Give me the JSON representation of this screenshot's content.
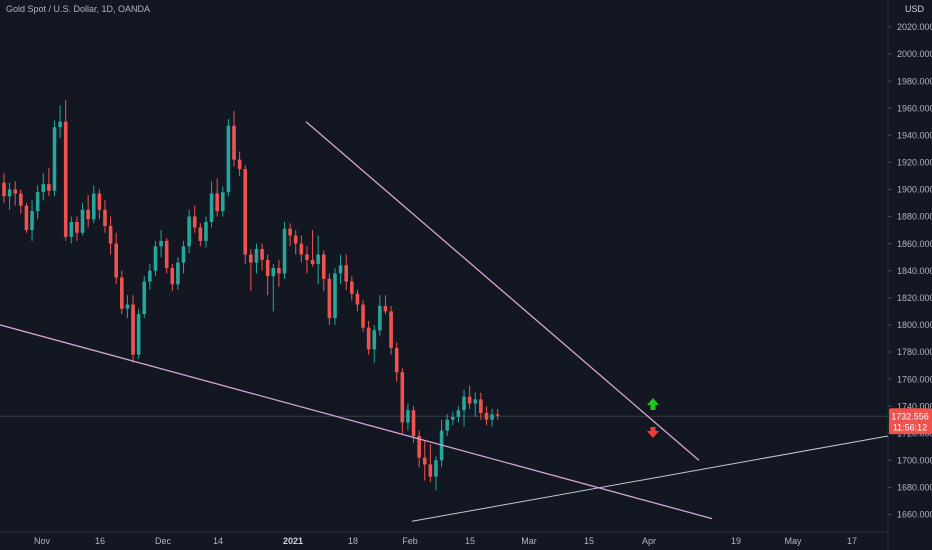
{
  "header": {
    "title": "Gold Spot / U.S. Dollar, 1D, OANDA",
    "currency": "USD"
  },
  "colors": {
    "background": "#131722",
    "up": "#26a69a",
    "down": "#ef5350",
    "trendline": "#d6a3d6",
    "support": "#c8c8c8",
    "arrow_up": "#22c322",
    "arrow_down": "#ef3e36"
  },
  "badge": {
    "price": "1732.556",
    "countdown": "11:56:12"
  },
  "markers": {
    "up_icon": "arrow-up-icon",
    "down_icon": "arrow-down-icon"
  },
  "chart_data": {
    "type": "candlestick",
    "y_ticks": [
      "2020.000",
      "2000.000",
      "1980.000",
      "1960.000",
      "1940.000",
      "1920.000",
      "1900.000",
      "1880.000",
      "1860.000",
      "1840.000",
      "1820.000",
      "1800.000",
      "1780.000",
      "1760.000",
      "1740.000",
      "1720.000",
      "1700.000",
      "1680.000",
      "1660.000"
    ],
    "x_ticks": [
      {
        "label": "Nov",
        "bold": false
      },
      {
        "label": "16",
        "bold": false
      },
      {
        "label": "Dec",
        "bold": false
      },
      {
        "label": "14",
        "bold": false
      },
      {
        "label": "2021",
        "bold": true
      },
      {
        "label": "18",
        "bold": false
      },
      {
        "label": "Feb",
        "bold": false
      },
      {
        "label": "15",
        "bold": false
      },
      {
        "label": "Mar",
        "bold": false
      },
      {
        "label": "15",
        "bold": false
      },
      {
        "label": "Apr",
        "bold": false
      },
      {
        "label": "19",
        "bold": false
      },
      {
        "label": "May",
        "bold": false
      },
      {
        "label": "17",
        "bold": false
      }
    ],
    "last_price": 1732.556,
    "candles": [
      [
        1905,
        1912,
        1890,
        1895
      ],
      [
        1895,
        1905,
        1885,
        1900
      ],
      [
        1900,
        1906,
        1888,
        1897
      ],
      [
        1897,
        1900,
        1882,
        1888
      ],
      [
        1888,
        1890,
        1868,
        1870
      ],
      [
        1870,
        1892,
        1862,
        1884
      ],
      [
        1884,
        1903,
        1878,
        1898
      ],
      [
        1898,
        1912,
        1892,
        1904
      ],
      [
        1904,
        1916,
        1895,
        1899
      ],
      [
        1899,
        1951,
        1895,
        1946
      ],
      [
        1946,
        1962,
        1938,
        1950
      ],
      [
        1950,
        1966,
        1862,
        1865
      ],
      [
        1865,
        1880,
        1860,
        1876
      ],
      [
        1876,
        1880,
        1862,
        1868
      ],
      [
        1868,
        1890,
        1866,
        1885
      ],
      [
        1885,
        1896,
        1872,
        1878
      ],
      [
        1878,
        1903,
        1875,
        1897
      ],
      [
        1897,
        1900,
        1878,
        1885
      ],
      [
        1885,
        1892,
        1868,
        1873
      ],
      [
        1873,
        1880,
        1852,
        1860
      ],
      [
        1860,
        1868,
        1830,
        1835
      ],
      [
        1835,
        1840,
        1808,
        1812
      ],
      [
        1812,
        1822,
        1805,
        1815
      ],
      [
        1815,
        1822,
        1772,
        1778
      ],
      [
        1778,
        1812,
        1775,
        1808
      ],
      [
        1808,
        1836,
        1805,
        1832
      ],
      [
        1832,
        1845,
        1826,
        1840
      ],
      [
        1840,
        1862,
        1836,
        1858
      ],
      [
        1858,
        1870,
        1850,
        1862
      ],
      [
        1862,
        1864,
        1838,
        1842
      ],
      [
        1842,
        1845,
        1825,
        1830
      ],
      [
        1830,
        1850,
        1826,
        1846
      ],
      [
        1846,
        1862,
        1838,
        1858
      ],
      [
        1858,
        1885,
        1853,
        1880
      ],
      [
        1880,
        1888,
        1868,
        1872
      ],
      [
        1872,
        1875,
        1858,
        1862
      ],
      [
        1862,
        1880,
        1857,
        1876
      ],
      [
        1876,
        1906,
        1872,
        1897
      ],
      [
        1897,
        1908,
        1880,
        1884
      ],
      [
        1884,
        1902,
        1880,
        1898
      ],
      [
        1898,
        1952,
        1895,
        1947
      ],
      [
        1947,
        1958,
        1917,
        1922
      ],
      [
        1922,
        1928,
        1910,
        1915
      ],
      [
        1915,
        1918,
        1845,
        1852
      ],
      [
        1852,
        1856,
        1825,
        1846
      ],
      [
        1846,
        1860,
        1838,
        1856
      ],
      [
        1856,
        1860,
        1840,
        1848
      ],
      [
        1848,
        1852,
        1822,
        1836
      ],
      [
        1836,
        1845,
        1810,
        1842
      ],
      [
        1842,
        1848,
        1828,
        1838
      ],
      [
        1838,
        1876,
        1834,
        1871
      ],
      [
        1871,
        1875,
        1858,
        1866
      ],
      [
        1866,
        1870,
        1852,
        1860
      ],
      [
        1860,
        1866,
        1846,
        1852
      ],
      [
        1852,
        1858,
        1838,
        1848
      ],
      [
        1848,
        1870,
        1843,
        1845
      ],
      [
        1845,
        1866,
        1830,
        1852
      ],
      [
        1852,
        1855,
        1825,
        1834
      ],
      [
        1834,
        1838,
        1800,
        1805
      ],
      [
        1805,
        1842,
        1800,
        1838
      ],
      [
        1838,
        1852,
        1830,
        1844
      ],
      [
        1844,
        1852,
        1826,
        1832
      ],
      [
        1832,
        1836,
        1818,
        1823
      ],
      [
        1823,
        1826,
        1810,
        1815
      ],
      [
        1815,
        1818,
        1795,
        1798
      ],
      [
        1798,
        1803,
        1778,
        1782
      ],
      [
        1782,
        1800,
        1772,
        1796
      ],
      [
        1796,
        1822,
        1792,
        1814
      ],
      [
        1814,
        1822,
        1808,
        1810
      ],
      [
        1810,
        1814,
        1778,
        1783
      ],
      [
        1783,
        1787,
        1758,
        1765
      ],
      [
        1765,
        1768,
        1720,
        1728
      ],
      [
        1728,
        1742,
        1722,
        1737
      ],
      [
        1737,
        1740,
        1713,
        1718
      ],
      [
        1718,
        1722,
        1695,
        1702
      ],
      [
        1702,
        1715,
        1685,
        1697
      ],
      [
        1697,
        1712,
        1684,
        1688
      ],
      [
        1688,
        1703,
        1678,
        1700
      ],
      [
        1700,
        1730,
        1695,
        1722
      ],
      [
        1722,
        1734,
        1718,
        1730
      ],
      [
        1730,
        1736,
        1726,
        1732
      ],
      [
        1732,
        1740,
        1728,
        1737
      ],
      [
        1737,
        1752,
        1725,
        1747
      ],
      [
        1747,
        1755,
        1738,
        1742
      ],
      [
        1742,
        1750,
        1732,
        1745
      ],
      [
        1745,
        1750,
        1730,
        1735
      ],
      [
        1735,
        1740,
        1726,
        1730
      ],
      [
        1730,
        1738,
        1725,
        1734
      ],
      [
        1734,
        1738,
        1730,
        1733
      ]
    ]
  }
}
